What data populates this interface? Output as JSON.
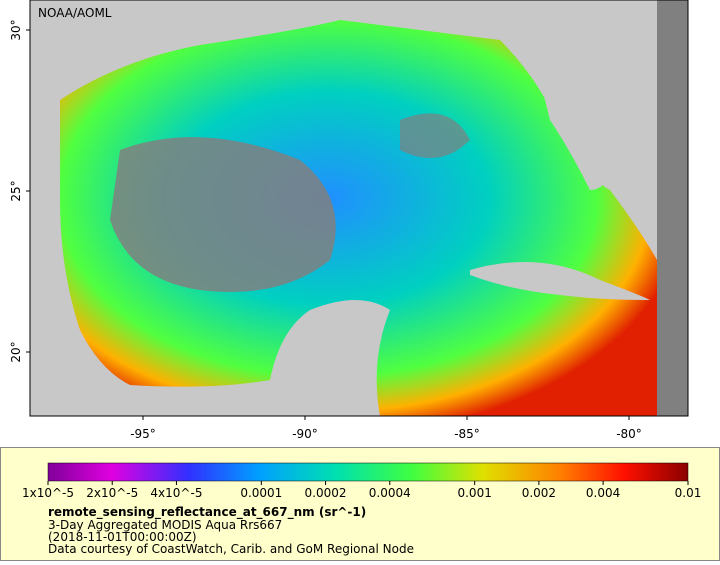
{
  "map": {
    "credit": "NOAA/AOML",
    "lat_ticks": [
      "30°",
      "25°",
      "20°"
    ],
    "lon_ticks": [
      "-95°",
      "-90°",
      "-85°",
      "-80°"
    ],
    "colorbar_ticks": [
      "1x10^-5",
      "2x10^-5",
      "4x10^-5",
      "0.0001",
      "0.0002",
      "0.0004",
      "0.001",
      "0.002",
      "0.004",
      "0.01"
    ],
    "variable": "remote_sensing_reflectance_at_667_nm (sr^-1)",
    "description": "3-Day Aggregated MODIS Aqua Rrs667",
    "time": "(2018-11-01T00:00:00Z)",
    "source": "Data courtesy of CoastWatch, Carib. and GoM Regional Node"
  }
}
